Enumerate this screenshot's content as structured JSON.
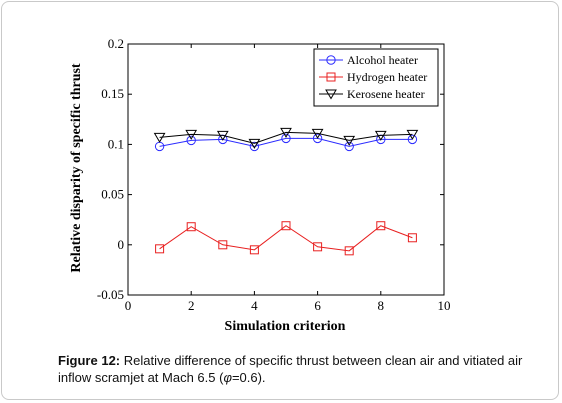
{
  "chart_data": {
    "type": "line",
    "xlabel": "Simulation criterion",
    "ylabel": "Relative disparity of specific thrust",
    "xlim": [
      0,
      10
    ],
    "ylim": [
      -0.05,
      0.2
    ],
    "x_ticks": [
      "0",
      "2",
      "4",
      "6",
      "8",
      "10"
    ],
    "y_ticks": [
      "-0.05",
      "0",
      "0.05",
      "0.1",
      "0.15",
      "0.2"
    ],
    "grid": false,
    "legend_position": "top-right",
    "x": [
      1,
      2,
      3,
      4,
      5,
      6,
      7,
      8,
      9
    ],
    "series": [
      {
        "name": "Alcohol heater",
        "color": "#2b2bff",
        "marker": "circle",
        "values": [
          0.098,
          0.104,
          0.105,
          0.098,
          0.106,
          0.106,
          0.098,
          0.105,
          0.105
        ]
      },
      {
        "name": "Hydrogen heater",
        "color": "#e82020",
        "marker": "square",
        "values": [
          -0.004,
          0.018,
          0.0,
          -0.005,
          0.019,
          -0.002,
          -0.006,
          0.019,
          0.007
        ]
      },
      {
        "name": "Kerosene heater",
        "color": "#000000",
        "marker": "triangle-down",
        "values": [
          0.107,
          0.11,
          0.109,
          0.101,
          0.112,
          0.111,
          0.104,
          0.109,
          0.11
        ]
      }
    ]
  },
  "caption": {
    "label": "Figure 12:",
    "text_part1": " Relative difference of specific thrust between clean air and vitiated air inflow scramjet at Mach 6.5 (",
    "symbol": "φ",
    "text_part2": "=0.6)."
  }
}
